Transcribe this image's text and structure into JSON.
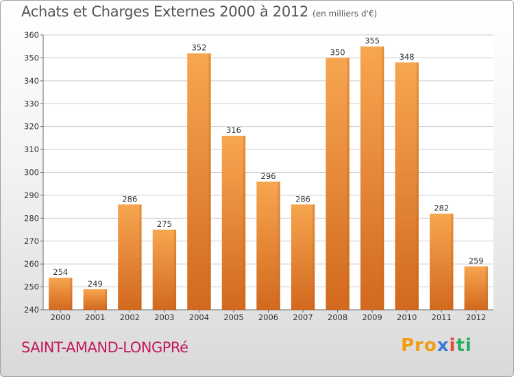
{
  "header": {
    "title": "Achats et Charges Externes 2000 à 2012",
    "subtitle": "(en milliers d'€)"
  },
  "footer": {
    "commune": "SAINT-AMAND-LONGPRé",
    "logo": {
      "p1": "Pro",
      "p2": "x",
      "p3": "i",
      "p4": "ti"
    }
  },
  "colors": {
    "bar_top": "#f7a650",
    "bar_bottom": "#d2691e",
    "grid": "#cccccc",
    "title": "#555555",
    "commune": "#c2185b"
  },
  "chart_data": {
    "type": "bar",
    "categories": [
      "2000",
      "2001",
      "2002",
      "2003",
      "2004",
      "2005",
      "2006",
      "2007",
      "2008",
      "2009",
      "2010",
      "2011",
      "2012"
    ],
    "values": [
      254,
      249,
      286,
      275,
      352,
      316,
      296,
      286,
      350,
      355,
      348,
      282,
      259
    ],
    "ylim": [
      240,
      360
    ],
    "yticks": [
      240,
      250,
      260,
      270,
      280,
      290,
      300,
      310,
      320,
      330,
      340,
      350,
      360
    ],
    "grid": true,
    "title": "Achats et Charges Externes 2000 à 2012",
    "subtitle": "(en milliers d'€)"
  }
}
